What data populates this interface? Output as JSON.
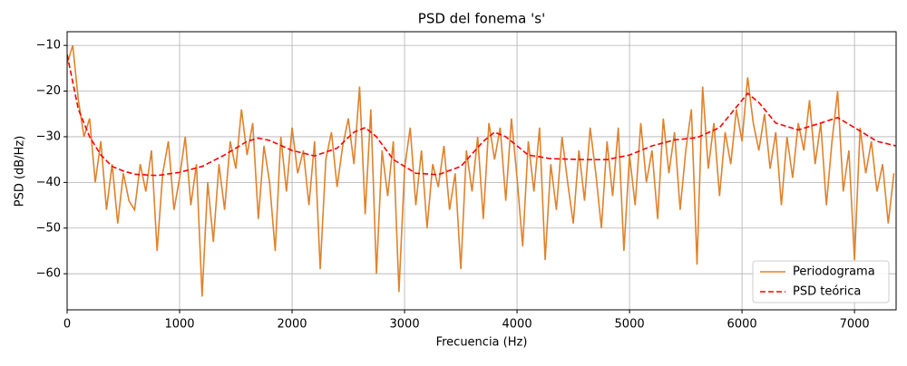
{
  "chart_data": {
    "type": "line",
    "title": "PSD del fonema 's'",
    "xlabel": "Frecuencia (Hz)",
    "ylabel": "PSD (dB/Hz)",
    "xlim": [
      0,
      7370
    ],
    "ylim": [
      -67.9,
      -7.0
    ],
    "xticks": [
      0,
      1000,
      2000,
      3000,
      4000,
      5000,
      6000,
      7000
    ],
    "yticks": [
      {
        "value": -60,
        "label": "−60"
      },
      {
        "value": -50,
        "label": "−50"
      },
      {
        "value": -40,
        "label": "−40"
      },
      {
        "value": -30,
        "label": "−30"
      },
      {
        "value": -20,
        "label": "−20"
      },
      {
        "value": -10,
        "label": "−10"
      }
    ],
    "grid": true,
    "legend": "lower right",
    "series": [
      {
        "name": "Periodograma",
        "color": "#e0822c",
        "dash": "solid",
        "x": [
          0,
          50,
          100,
          150,
          200,
          250,
          300,
          350,
          400,
          450,
          500,
          550,
          600,
          650,
          700,
          750,
          800,
          850,
          900,
          950,
          1000,
          1050,
          1100,
          1150,
          1200,
          1250,
          1300,
          1350,
          1400,
          1450,
          1500,
          1550,
          1600,
          1650,
          1700,
          1750,
          1800,
          1850,
          1900,
          1950,
          2000,
          2050,
          2100,
          2150,
          2200,
          2250,
          2300,
          2350,
          2400,
          2450,
          2500,
          2550,
          2600,
          2650,
          2700,
          2750,
          2800,
          2850,
          2900,
          2950,
          3000,
          3050,
          3100,
          3150,
          3200,
          3250,
          3300,
          3350,
          3400,
          3450,
          3500,
          3550,
          3600,
          3650,
          3700,
          3750,
          3800,
          3850,
          3900,
          3950,
          4000,
          4050,
          4100,
          4150,
          4200,
          4250,
          4300,
          4350,
          4400,
          4450,
          4500,
          4550,
          4600,
          4650,
          4700,
          4750,
          4800,
          4850,
          4900,
          4950,
          5000,
          5050,
          5100,
          5150,
          5200,
          5250,
          5300,
          5350,
          5400,
          5450,
          5500,
          5550,
          5600,
          5650,
          5700,
          5750,
          5800,
          5850,
          5900,
          5950,
          6000,
          6050,
          6100,
          6150,
          6200,
          6250,
          6300,
          6350,
          6400,
          6450,
          6500,
          6550,
          6600,
          6650,
          6700,
          6750,
          6800,
          6850,
          6900,
          6950,
          7000,
          7050,
          7100,
          7150,
          7200,
          7250,
          7300,
          7350
        ],
        "values": [
          -14,
          -10,
          -22,
          -30,
          -26,
          -40,
          -31,
          -46,
          -36,
          -49,
          -38,
          -44,
          -46,
          -36,
          -42,
          -33,
          -55,
          -38,
          -31,
          -46,
          -39,
          -30,
          -45,
          -36,
          -65,
          -40,
          -53,
          -36,
          -46,
          -31,
          -37,
          -24,
          -34,
          -27,
          -48,
          -32,
          -40,
          -55,
          -30,
          -42,
          -28,
          -38,
          -33,
          -45,
          -31,
          -59,
          -35,
          -29,
          -41,
          -32,
          -26,
          -36,
          -19,
          -47,
          -24,
          -60,
          -33,
          -43,
          -31,
          -64,
          -37,
          -28,
          -45,
          -33,
          -50,
          -36,
          -41,
          -32,
          -46,
          -38,
          -59,
          -33,
          -42,
          -30,
          -48,
          -27,
          -35,
          -28,
          -44,
          -26,
          -39,
          -54,
          -31,
          -42,
          -28,
          -57,
          -36,
          -46,
          -30,
          -40,
          -49,
          -33,
          -44,
          -28,
          -38,
          -50,
          -31,
          -43,
          -28,
          -55,
          -34,
          -45,
          -27,
          -40,
          -33,
          -48,
          -26,
          -38,
          -29,
          -46,
          -33,
          -24,
          -58,
          -19,
          -37,
          -27,
          -43,
          -29,
          -36,
          -24,
          -31,
          -17,
          -27,
          -33,
          -25,
          -37,
          -29,
          -45,
          -30,
          -39,
          -27,
          -33,
          -22,
          -36,
          -27,
          -45,
          -31,
          -20,
          -42,
          -33,
          -57,
          -28,
          -38,
          -31,
          -42,
          -36,
          -49,
          -38
        ]
      },
      {
        "name": "PSD teórica",
        "color": "#ff0000",
        "dash": "dashed",
        "x": [
          0,
          50,
          100,
          200,
          300,
          400,
          500,
          600,
          800,
          1000,
          1200,
          1400,
          1600,
          1700,
          1800,
          2000,
          2200,
          2400,
          2550,
          2650,
          2750,
          2900,
          3100,
          3300,
          3500,
          3700,
          3800,
          3900,
          4100,
          4300,
          4600,
          4800,
          5000,
          5200,
          5400,
          5600,
          5800,
          5950,
          6050,
          6150,
          6300,
          6500,
          6700,
          6850,
          7000,
          7200,
          7370
        ],
        "values": [
          -12,
          -18,
          -24,
          -30,
          -34,
          -36.5,
          -37.5,
          -38.2,
          -38.5,
          -37.8,
          -36.5,
          -34,
          -31,
          -30.3,
          -30.8,
          -33,
          -34.2,
          -32.5,
          -29,
          -28,
          -30,
          -35,
          -38,
          -38.3,
          -36.5,
          -31,
          -29,
          -30,
          -34,
          -34.8,
          -35,
          -35,
          -34,
          -32,
          -30.7,
          -30.2,
          -28,
          -23.5,
          -20.5,
          -22.5,
          -27,
          -28.5,
          -27,
          -25.8,
          -28,
          -31,
          -32
        ]
      }
    ]
  }
}
